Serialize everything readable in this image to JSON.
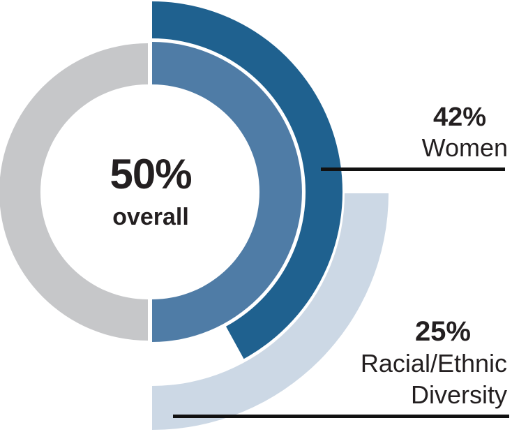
{
  "chart_data": {
    "type": "donut",
    "title": "",
    "legend_position": "right-callouts",
    "center": {
      "value": "50%",
      "caption": "overall"
    },
    "rings": [
      {
        "id": "overall",
        "label": "overall",
        "percent": 50,
        "value_label": "50%",
        "color": "#4f7ca6",
        "remainder_color": "#c6c7c9",
        "position": "inner"
      },
      {
        "id": "women",
        "label": "Women",
        "percent": 42,
        "value_label": "42%",
        "color": "#1f618f",
        "position": "middle",
        "anchor": "starts-at-top"
      },
      {
        "id": "racial-ethnic-diversity",
        "label": "Racial/Ethnic Diversity",
        "percent": 25,
        "value_label": "25%",
        "color": "#ccd8e5",
        "position": "outer",
        "anchor": "ends-at-bottom"
      }
    ]
  },
  "callouts": {
    "women": {
      "value": "42%",
      "label": "Women"
    },
    "diversity": {
      "value": "25%",
      "label_line1": "Racial/Ethnic",
      "label_line2": "Diversity"
    }
  },
  "colors": {
    "dark_blue": "#1f618f",
    "medium_blue": "#4f7ca6",
    "light_blue": "#ccd8e5",
    "gray": "#c6c7c9",
    "text": "#231f20",
    "leader_line": "#111111",
    "background": "#ffffff"
  }
}
